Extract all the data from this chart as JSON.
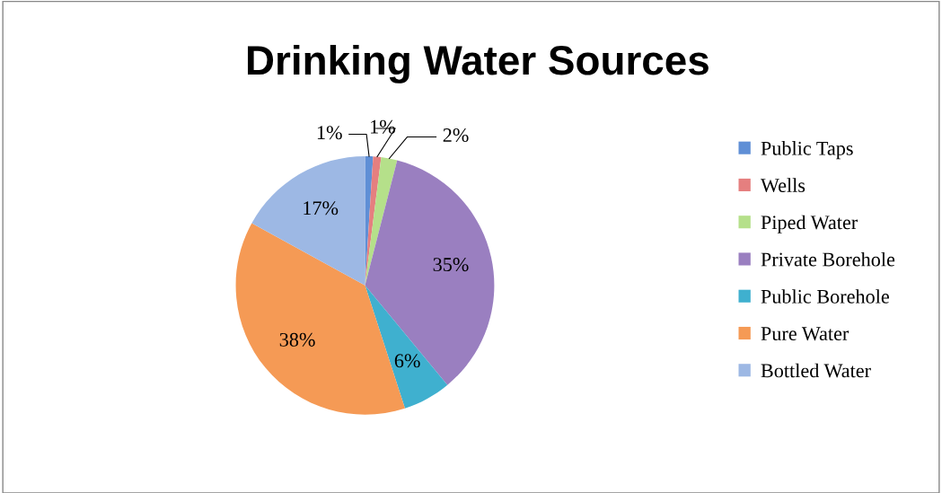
{
  "chart_data": {
    "type": "pie",
    "title": "Drinking Water Sources",
    "categories": [
      "Public Taps",
      "Wells",
      "Piped Water",
      "Private Borehole",
      "Public Borehole",
      "Pure Water",
      "Bottled Water"
    ],
    "values": [
      1,
      1,
      2,
      35,
      6,
      38,
      17
    ],
    "colors": [
      "#5f8fd6",
      "#e57f7f",
      "#b5e08a",
      "#9a7fc0",
      "#3fb0cf",
      "#f59a55",
      "#9db8e4"
    ],
    "value_labels": [
      "1%",
      "1%",
      "2%",
      "35%",
      "6%",
      "38%",
      "17%"
    ],
    "legend": "right"
  }
}
